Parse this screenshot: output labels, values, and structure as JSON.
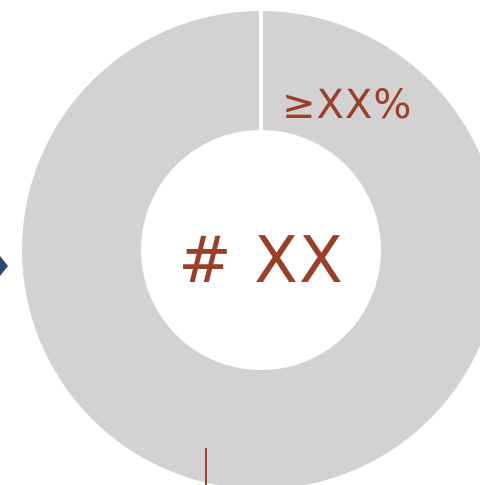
{
  "donut": {
    "center_text": "# XX",
    "segment_label": "≥XX%"
  },
  "colors": {
    "ring": "#d3d1d2",
    "text_accent": "#9a3f2a",
    "connector": "#2e4a70",
    "divider": "#ffffff",
    "background": "#ffffff"
  },
  "icons": {
    "left_pointer": "chevron-right-icon"
  }
}
